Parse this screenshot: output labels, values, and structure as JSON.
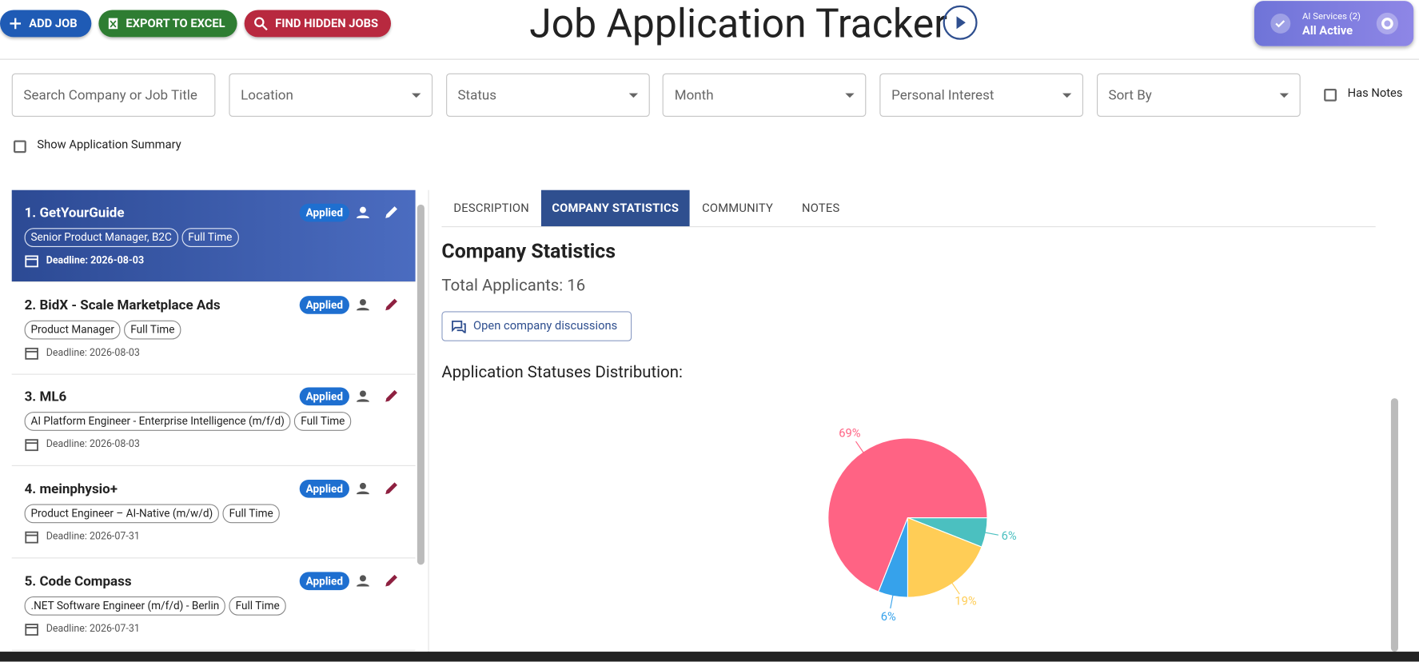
{
  "toolbar": {
    "buttons": [
      "ADD JOB",
      "EXPORT TO EXCEL",
      "FIND HIDDEN JOBS"
    ],
    "title": "Job Application Tracker",
    "ai_services": {
      "label": "AI Services (2)",
      "status": "All Active"
    }
  },
  "filters": {
    "search": "Search Company or Job Title",
    "selects": [
      "Location",
      "Status",
      "Month",
      "Personal Interest",
      "Sort By"
    ],
    "has_notes": "Has Notes"
  },
  "summary_toggle": "Show Application Summary",
  "selected_job": 0,
  "jobs": [
    {
      "title": "1. GetYourGuide",
      "status": "Applied",
      "tags": [
        "Senior Product Manager, B2C",
        "Full Time"
      ],
      "deadline": "Deadline: 2026-08-03"
    },
    {
      "title": "2. BidX - Scale Marketplace Ads",
      "status": "Applied",
      "tags": [
        "Product Manager",
        "Full Time"
      ],
      "deadline": "Deadline: 2026-08-03"
    },
    {
      "title": "3. ML6",
      "status": "Applied",
      "tags": [
        "AI Platform Engineer - Enterprise Intelligence (m/f/d)",
        "Full Time"
      ],
      "deadline": "Deadline: 2026-08-03"
    },
    {
      "title": "4. meinphysio+",
      "status": "Applied",
      "tags": [
        "Product Engineer – AI-Native (m/w/d)",
        "Full Time"
      ],
      "deadline": "Deadline: 2026-07-31"
    },
    {
      "title": "5. Code Compass",
      "status": "Applied",
      "tags": [
        ".NET Software Engineer (m/f/d) - Berlin",
        "Full Time"
      ],
      "deadline": "Deadline: 2026-07-31"
    }
  ],
  "tabs": [
    "DESCRIPTION",
    "COMPANY STATISTICS",
    "COMMUNITY",
    "NOTES"
  ],
  "active_tab": 1,
  "statistics": {
    "heading": "Company Statistics",
    "total": "Total Applicants: 16",
    "discussions_button": "Open company discussions",
    "distribution_title": "Application Statuses Distribution:",
    "chart": {
      "type": "pie",
      "values": [
        6,
        19,
        6,
        69
      ],
      "value_labels": [
        "6%",
        "19%",
        "6%",
        "69%"
      ],
      "colors": [
        "#4bc0c0",
        "#ffcd56",
        "#36a2eb",
        "#ff6384"
      ]
    }
  }
}
